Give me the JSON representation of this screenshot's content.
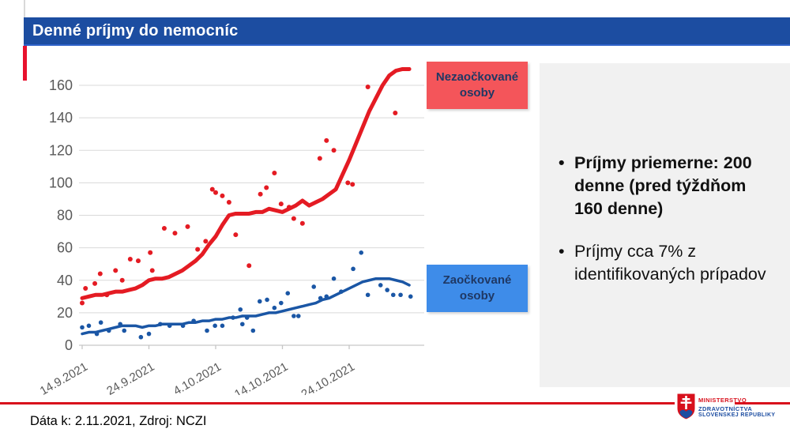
{
  "slide": {
    "title": "Denné príjmy do nemocníc"
  },
  "chart": {
    "legends": [
      {
        "label": "Nezaočkované osoby",
        "bg": "#f4555a",
        "text_color": "#1f3864"
      },
      {
        "label": "Zaočkované osoby",
        "bg": "#3e8ce9",
        "text_color": "#1f3864"
      }
    ]
  },
  "chart_data": {
    "type": "line",
    "title": "",
    "xlabel": "",
    "ylabel": "",
    "ylim": [
      0,
      160
    ],
    "ytick_step": 20,
    "grid": true,
    "x_unit": "days from 14.9.2021",
    "x_tick_days": [
      0,
      10,
      20,
      30,
      40
    ],
    "x_tick_labels": [
      "14.9.2021",
      "24.9.2021",
      "4.10.2021",
      "14.10.2021",
      "24.10.2021"
    ],
    "series": [
      {
        "name": "Nezaočkované osoby",
        "color": "#e41b23",
        "style": "thick smoothed average line with daily scatter dots",
        "avg_line": [
          29,
          30,
          31,
          31,
          32,
          33,
          33,
          34,
          35,
          37,
          40,
          41,
          41,
          42,
          44,
          46,
          49,
          52,
          56,
          62,
          67,
          74,
          80,
          81,
          81,
          81,
          82,
          82,
          84,
          83,
          82,
          84,
          86,
          89,
          86,
          88,
          90,
          93,
          96,
          105,
          114,
          124,
          134,
          144,
          152,
          160,
          166,
          169,
          170,
          170
        ],
        "daily_points": [
          [
            0,
            26
          ],
          [
            0.5,
            35
          ],
          [
            1.9,
            38
          ],
          [
            2.7,
            44
          ],
          [
            3.7,
            31
          ],
          [
            5,
            46
          ],
          [
            6,
            40
          ],
          [
            7.2,
            53
          ],
          [
            8.4,
            52
          ],
          [
            10.2,
            57
          ],
          [
            10.5,
            46
          ],
          [
            12.3,
            72
          ],
          [
            13.9,
            69
          ],
          [
            15.8,
            73
          ],
          [
            17.3,
            59
          ],
          [
            18.5,
            64
          ],
          [
            19.5,
            96
          ],
          [
            20,
            94
          ],
          [
            21,
            92
          ],
          [
            22,
            88
          ],
          [
            23,
            68
          ],
          [
            25,
            49
          ],
          [
            26.7,
            93
          ],
          [
            27.6,
            97
          ],
          [
            28.8,
            106
          ],
          [
            29.8,
            87
          ],
          [
            31,
            85
          ],
          [
            31.7,
            78
          ],
          [
            33,
            75
          ],
          [
            35.6,
            115
          ],
          [
            36.6,
            126
          ],
          [
            37.7,
            120
          ],
          [
            39.8,
            100
          ],
          [
            40.5,
            99
          ],
          [
            42.8,
            159
          ],
          [
            46.9,
            143
          ]
        ]
      },
      {
        "name": "Zaočkované osoby",
        "color": "#1a56a5",
        "style": "smoothed average line with daily scatter dots",
        "avg_line": [
          7,
          8,
          8,
          9,
          10,
          11,
          12,
          12,
          12,
          11,
          12,
          12,
          13,
          13,
          13,
          13,
          14,
          14,
          15,
          15,
          16,
          16,
          17,
          17,
          18,
          18,
          18,
          19,
          20,
          20,
          21,
          22,
          23,
          24,
          25,
          26,
          28,
          29,
          31,
          33,
          35,
          37,
          39,
          40,
          41,
          41,
          41,
          40,
          39,
          37
        ],
        "daily_points": [
          [
            0,
            11
          ],
          [
            1,
            12
          ],
          [
            2.2,
            7
          ],
          [
            2.8,
            14
          ],
          [
            4,
            9
          ],
          [
            5.7,
            13
          ],
          [
            6.3,
            9
          ],
          [
            8.8,
            5
          ],
          [
            10,
            7
          ],
          [
            11.7,
            13
          ],
          [
            13.1,
            12
          ],
          [
            15.1,
            12
          ],
          [
            16.7,
            15
          ],
          [
            18.7,
            9
          ],
          [
            19.9,
            12
          ],
          [
            21,
            12
          ],
          [
            22.6,
            17
          ],
          [
            23.7,
            22
          ],
          [
            24,
            13
          ],
          [
            24.7,
            17
          ],
          [
            25.6,
            9
          ],
          [
            26.6,
            27
          ],
          [
            27.7,
            28
          ],
          [
            28.8,
            23
          ],
          [
            29.8,
            26
          ],
          [
            30.8,
            32
          ],
          [
            31.7,
            18
          ],
          [
            32.4,
            18
          ],
          [
            34.7,
            36
          ],
          [
            35.7,
            29
          ],
          [
            36.6,
            30
          ],
          [
            37.7,
            41
          ],
          [
            38.8,
            33
          ],
          [
            40.6,
            47
          ],
          [
            41.8,
            57
          ],
          [
            42.8,
            31
          ],
          [
            44.7,
            37
          ],
          [
            45.7,
            34
          ],
          [
            46.6,
            31
          ],
          [
            47.7,
            31
          ],
          [
            49.2,
            30
          ]
        ]
      }
    ]
  },
  "panel": {
    "bullets": [
      {
        "text": "Príjmy priemerne: 200 denne (pred týždňom 160 denne)",
        "bold": true
      },
      {
        "text": "Príjmy cca 7% z identifikovaných prípadov",
        "bold": false
      }
    ]
  },
  "footer": {
    "note": "Dáta k: 2.11.2021, Zdroj: NCZI",
    "logo": {
      "line1": "MINISTERSTVO",
      "line2": "ZDRAVOTNÍCTVA",
      "line3": "SLOVENSKEJ REPUBLIKY"
    }
  },
  "colors": {
    "title_bar": "#1c4da1",
    "accent_red": "#e8112d",
    "footer_line_red": "#d8101c",
    "panel_bg": "#f1f1f1",
    "gridline": "#d9d9d9",
    "axis_text": "#595959"
  }
}
